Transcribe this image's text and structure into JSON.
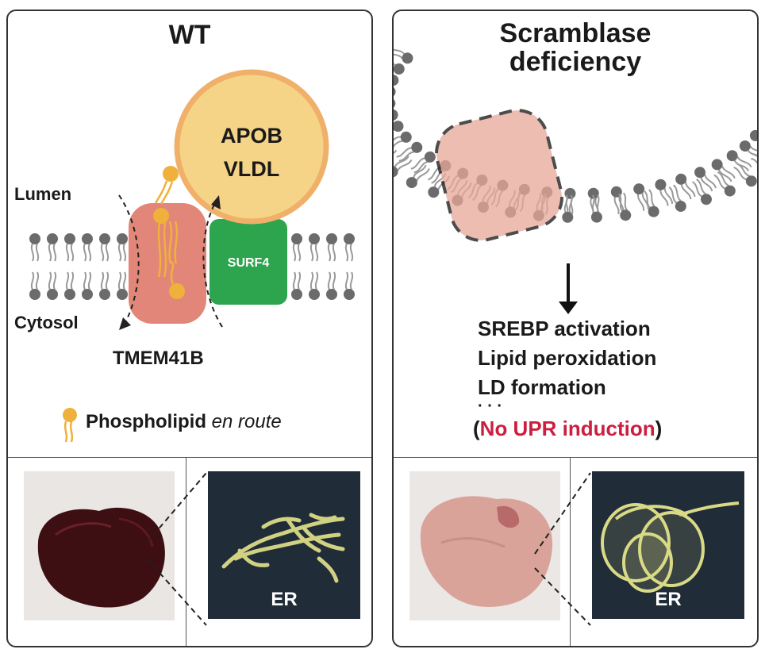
{
  "wt": {
    "title": "WT",
    "apob_line1": "APOB",
    "apob_line2": "VLDL",
    "surf4": "SURF4",
    "lumen": "Lumen",
    "cytosol": "Cytosol",
    "tmem41b": "TMEM41B",
    "legend_bold": "Phospholipid",
    "legend_italic": "en route",
    "er_label": "ER"
  },
  "sd": {
    "title_line1": "Scramblase",
    "title_line2": "deficiency",
    "outcomes": [
      "SREBP activation",
      "Lipid peroxidation",
      "LD formation"
    ],
    "ellipsis": "· · ·",
    "note_open": "(",
    "note_red": "No UPR induction",
    "note_close": ")",
    "er_label": "ER"
  },
  "colors": {
    "lipid_head": "#6b6b6b",
    "lipid_tail": "#9a9a9a",
    "phospholipid": "#f0b13c",
    "apob_fill": "#f5d488",
    "apob_ring": "#f0b06a",
    "tmem41b": "#e07f72",
    "surf4": "#2da44e",
    "highlight_red": "#cc1e3f",
    "er_bg": "#212c39",
    "er_structure": "#e3e48a"
  }
}
